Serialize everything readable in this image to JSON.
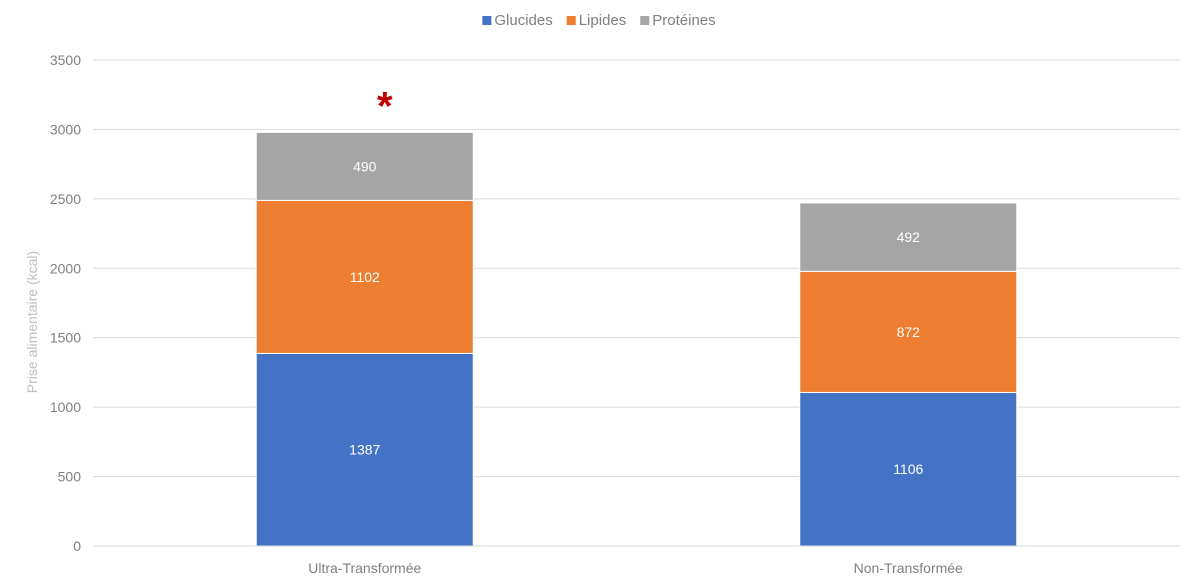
{
  "chart_data": {
    "type": "bar",
    "stacked": true,
    "categories": [
      "Ultra-Transformée",
      "Non-Transformée"
    ],
    "series": [
      {
        "name": "Glucides",
        "color": "#4472c4",
        "values": [
          1387,
          1106
        ]
      },
      {
        "name": "Lipides",
        "color": "#ed7d31",
        "values": [
          1102,
          872
        ]
      },
      {
        "name": "Protéines",
        "color": "#a5a5a5",
        "values": [
          490,
          492
        ]
      }
    ],
    "title": "",
    "xlabel": "",
    "ylabel": "Prise alimentaire (kcal)",
    "ylim": [
      0,
      3500
    ],
    "yticks": [
      0,
      500,
      1000,
      1500,
      2000,
      2500,
      3000,
      3500
    ],
    "grid": true,
    "legend_position": "top-center",
    "annotations": [
      {
        "text": "*",
        "category": "Ultra-Transformée",
        "color": "#c00000"
      }
    ]
  }
}
